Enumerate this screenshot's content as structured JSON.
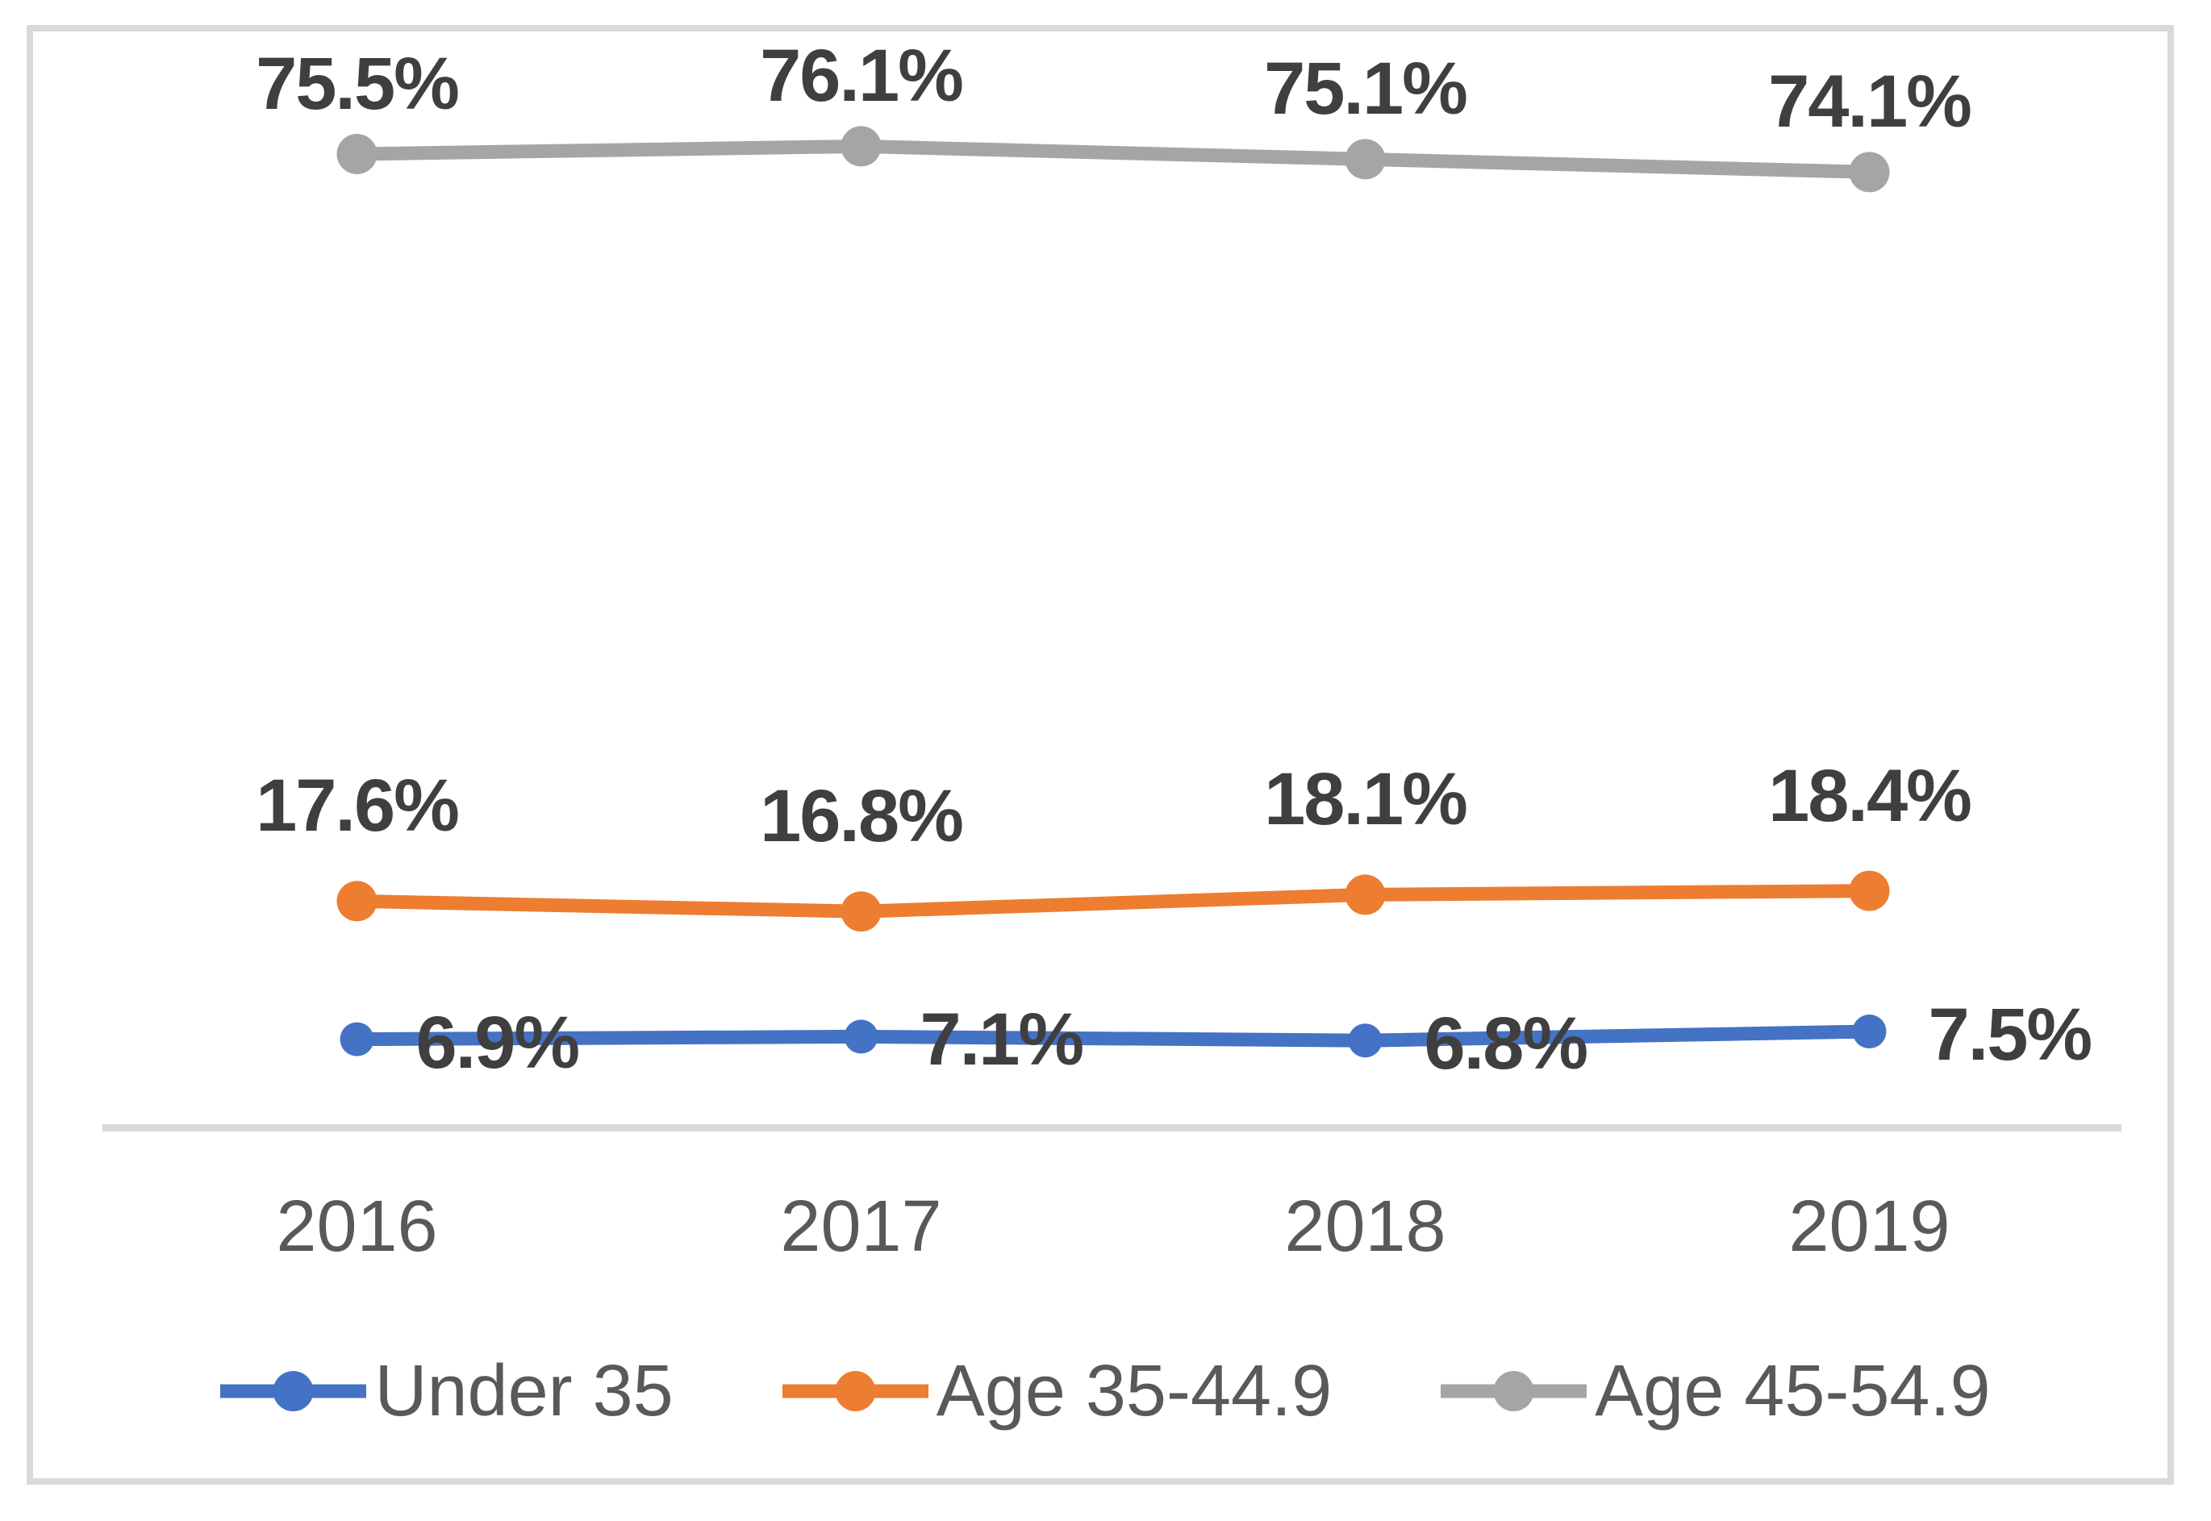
{
  "chart_data": {
    "type": "line",
    "title": "",
    "xlabel": "",
    "ylabel": "",
    "x_labels": [
      "2016",
      "2017",
      "2018",
      "2019"
    ],
    "series": [
      {
        "name": "Under 35",
        "values": [
          6.9,
          7.1,
          6.8,
          7.5
        ],
        "data_labels": [
          "6.9%",
          "7.1%",
          "6.8%",
          "7.5%"
        ],
        "color": "#4472C4",
        "label_position": "right"
      },
      {
        "name": "Age 35-44.9",
        "values": [
          17.6,
          16.8,
          18.1,
          18.4
        ],
        "data_labels": [
          "17.6%",
          "16.8%",
          "18.1%",
          "18.4%"
        ],
        "color": "#ED7D31",
        "label_position": "above"
      },
      {
        "name": "Age 45-54.9",
        "values": [
          75.5,
          76.1,
          75.1,
          74.1
        ],
        "data_labels": [
          "75.5%",
          "76.1%",
          "75.1%",
          "74.1%"
        ],
        "color": "#A5A5A5",
        "label_position": "above"
      }
    ],
    "ylim": [
      0,
      80
    ],
    "grid": false,
    "legend_position": "bottom",
    "legend": [
      "Under 35",
      "Age 35-44.9",
      "Age 45-54.9"
    ]
  },
  "colors": {
    "background": "#FFFFFF",
    "frame_border": "#D9D9D9",
    "axis_line": "#D9D9D9",
    "axis_text": "#595959",
    "legend_text": "#595959",
    "data_label_text": "#3F3F3F"
  }
}
